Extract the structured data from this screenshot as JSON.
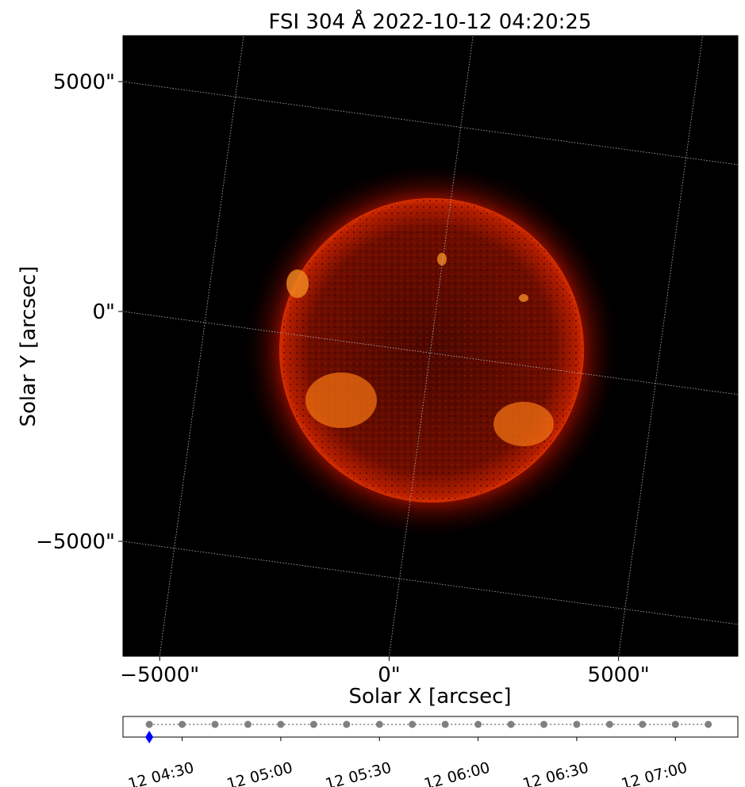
{
  "chart_data": [
    {
      "type": "image",
      "title": "FSI 304 Å 2022-10-12 04:20:25",
      "xlabel": "Solar X [arcsec]",
      "ylabel": "Solar Y [arcsec]",
      "xlim": [
        -5800,
        7600
      ],
      "ylim": [
        -7500,
        6000
      ],
      "xticks": [
        {
          "value": -5000,
          "label": "−5000\""
        },
        {
          "value": 0,
          "label": "0\""
        },
        {
          "value": 5000,
          "label": "5000\""
        }
      ],
      "yticks": [
        {
          "value": -5000,
          "label": "−5000\""
        },
        {
          "value": 0,
          "label": "0\""
        },
        {
          "value": 5000,
          "label": "5000\""
        }
      ],
      "grid": true
    },
    {
      "type": "timeline",
      "x": [
        "12 04:20",
        "12 04:30",
        "12 04:40",
        "12 04:50",
        "12 05:00",
        "12 05:10",
        "12 05:20",
        "12 05:30",
        "12 05:40",
        "12 05:50",
        "12 06:00",
        "12 06:10",
        "12 06:20",
        "12 06:30",
        "12 06:40",
        "12 06:50",
        "12 07:00",
        "12 07:10"
      ],
      "color": "#808080",
      "marker_x": "12 04:20",
      "marker_color": "#0000ff",
      "xlim": [
        "12 04:12",
        "12 07:19"
      ],
      "xticks": [
        "12 04:30",
        "12 05:00",
        "12 05:30",
        "12 06:00",
        "12 06:30",
        "12 07:00"
      ]
    }
  ]
}
